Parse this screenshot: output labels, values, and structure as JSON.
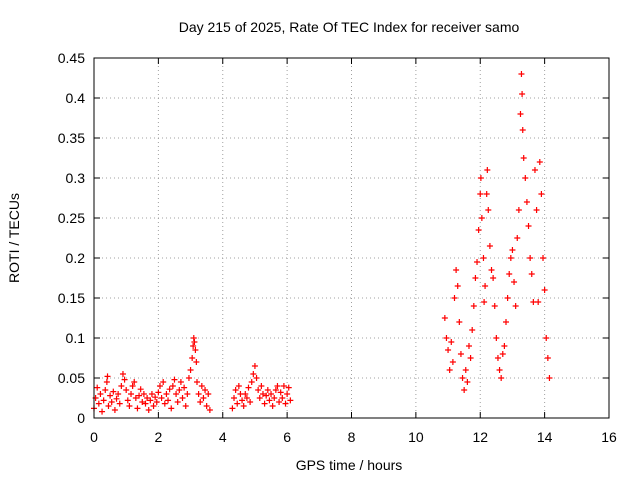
{
  "chart_data": {
    "type": "scatter",
    "title": "Day 215 of 2025, Rate Of TEC Index for receiver samo",
    "xlabel": "GPS time / hours",
    "ylabel": "ROTI / TECUs",
    "xlim": [
      0,
      16
    ],
    "ylim": [
      0,
      0.45
    ],
    "xticks": [
      0,
      2,
      4,
      6,
      8,
      10,
      12,
      14,
      16
    ],
    "xtick_labels": [
      "0",
      "2",
      "4",
      "6",
      "8",
      "10",
      "12",
      "14",
      "16"
    ],
    "yticks": [
      0,
      0.05,
      0.1,
      0.15,
      0.2,
      0.25,
      0.3,
      0.35,
      0.4,
      0.45
    ],
    "ytick_labels": [
      "0",
      "0.05",
      "0.1",
      "0.15",
      "0.2",
      "0.25",
      "0.3",
      "0.35",
      "0.4",
      "0.45"
    ],
    "grid": true,
    "marker": "+",
    "color": "#ff0000",
    "series": [
      {
        "name": "ROTI",
        "points": [
          [
            0.0,
            0.012
          ],
          [
            0.05,
            0.025
          ],
          [
            0.1,
            0.038
          ],
          [
            0.15,
            0.018
          ],
          [
            0.2,
            0.03
          ],
          [
            0.25,
            0.008
          ],
          [
            0.3,
            0.022
          ],
          [
            0.35,
            0.035
          ],
          [
            0.4,
            0.045
          ],
          [
            0.42,
            0.052
          ],
          [
            0.45,
            0.015
          ],
          [
            0.5,
            0.028
          ],
          [
            0.55,
            0.02
          ],
          [
            0.6,
            0.033
          ],
          [
            0.65,
            0.01
          ],
          [
            0.7,
            0.024
          ],
          [
            0.75,
            0.03
          ],
          [
            0.8,
            0.018
          ],
          [
            0.85,
            0.04
          ],
          [
            0.9,
            0.055
          ],
          [
            0.95,
            0.048
          ],
          [
            1.0,
            0.035
          ],
          [
            1.05,
            0.022
          ],
          [
            1.1,
            0.015
          ],
          [
            1.15,
            0.03
          ],
          [
            1.2,
            0.04
          ],
          [
            1.25,
            0.045
          ],
          [
            1.3,
            0.025
          ],
          [
            1.35,
            0.012
          ],
          [
            1.4,
            0.028
          ],
          [
            1.45,
            0.036
          ],
          [
            1.5,
            0.02
          ],
          [
            1.55,
            0.03
          ],
          [
            1.6,
            0.018
          ],
          [
            1.65,
            0.025
          ],
          [
            1.7,
            0.01
          ],
          [
            1.75,
            0.022
          ],
          [
            1.8,
            0.03
          ],
          [
            1.85,
            0.015
          ],
          [
            1.9,
            0.026
          ],
          [
            1.95,
            0.02
          ],
          [
            2.0,
            0.032
          ],
          [
            2.05,
            0.04
          ],
          [
            2.1,
            0.025
          ],
          [
            2.15,
            0.045
          ],
          [
            2.2,
            0.018
          ],
          [
            2.25,
            0.03
          ],
          [
            2.3,
            0.022
          ],
          [
            2.35,
            0.036
          ],
          [
            2.4,
            0.012
          ],
          [
            2.45,
            0.04
          ],
          [
            2.5,
            0.048
          ],
          [
            2.55,
            0.03
          ],
          [
            2.6,
            0.02
          ],
          [
            2.65,
            0.035
          ],
          [
            2.7,
            0.045
          ],
          [
            2.75,
            0.025
          ],
          [
            2.8,
            0.038
          ],
          [
            2.85,
            0.015
          ],
          [
            2.9,
            0.03
          ],
          [
            2.95,
            0.05
          ],
          [
            3.0,
            0.06
          ],
          [
            3.05,
            0.075
          ],
          [
            3.08,
            0.09
          ],
          [
            3.1,
            0.1
          ],
          [
            3.12,
            0.095
          ],
          [
            3.15,
            0.085
          ],
          [
            3.18,
            0.07
          ],
          [
            3.2,
            0.045
          ],
          [
            3.25,
            0.03
          ],
          [
            3.3,
            0.02
          ],
          [
            3.35,
            0.04
          ],
          [
            3.4,
            0.025
          ],
          [
            3.45,
            0.035
          ],
          [
            3.5,
            0.015
          ],
          [
            3.55,
            0.03
          ],
          [
            3.6,
            0.01
          ],
          [
            4.3,
            0.012
          ],
          [
            4.35,
            0.025
          ],
          [
            4.4,
            0.035
          ],
          [
            4.45,
            0.018
          ],
          [
            4.5,
            0.04
          ],
          [
            4.55,
            0.03
          ],
          [
            4.6,
            0.022
          ],
          [
            4.65,
            0.015
          ],
          [
            4.7,
            0.03
          ],
          [
            4.75,
            0.025
          ],
          [
            4.8,
            0.038
          ],
          [
            4.85,
            0.02
          ],
          [
            4.9,
            0.045
          ],
          [
            4.95,
            0.055
          ],
          [
            5.0,
            0.065
          ],
          [
            5.05,
            0.05
          ],
          [
            5.1,
            0.035
          ],
          [
            5.15,
            0.025
          ],
          [
            5.2,
            0.04
          ],
          [
            5.25,
            0.03
          ],
          [
            5.3,
            0.018
          ],
          [
            5.35,
            0.028
          ],
          [
            5.4,
            0.035
          ],
          [
            5.45,
            0.022
          ],
          [
            5.5,
            0.03
          ],
          [
            5.55,
            0.015
          ],
          [
            5.6,
            0.025
          ],
          [
            5.65,
            0.035
          ],
          [
            5.7,
            0.04
          ],
          [
            5.75,
            0.02
          ],
          [
            5.8,
            0.032
          ],
          [
            5.85,
            0.025
          ],
          [
            5.9,
            0.04
          ],
          [
            5.95,
            0.018
          ],
          [
            6.0,
            0.03
          ],
          [
            6.05,
            0.038
          ],
          [
            6.1,
            0.022
          ],
          [
            10.9,
            0.125
          ],
          [
            10.95,
            0.1
          ],
          [
            11.0,
            0.085
          ],
          [
            11.05,
            0.06
          ],
          [
            11.1,
            0.095
          ],
          [
            11.15,
            0.07
          ],
          [
            11.2,
            0.15
          ],
          [
            11.25,
            0.185
          ],
          [
            11.3,
            0.165
          ],
          [
            11.35,
            0.12
          ],
          [
            11.4,
            0.08
          ],
          [
            11.45,
            0.05
          ],
          [
            11.5,
            0.035
          ],
          [
            11.55,
            0.06
          ],
          [
            11.6,
            0.045
          ],
          [
            11.65,
            0.09
          ],
          [
            11.7,
            0.075
          ],
          [
            11.75,
            0.11
          ],
          [
            11.8,
            0.14
          ],
          [
            11.85,
            0.175
          ],
          [
            11.9,
            0.195
          ],
          [
            11.95,
            0.235
          ],
          [
            12.0,
            0.28
          ],
          [
            12.02,
            0.3
          ],
          [
            12.05,
            0.25
          ],
          [
            12.1,
            0.2
          ],
          [
            12.12,
            0.145
          ],
          [
            12.15,
            0.165
          ],
          [
            12.2,
            0.28
          ],
          [
            12.22,
            0.31
          ],
          [
            12.25,
            0.26
          ],
          [
            12.3,
            0.215
          ],
          [
            12.35,
            0.185
          ],
          [
            12.4,
            0.175
          ],
          [
            12.45,
            0.14
          ],
          [
            12.5,
            0.1
          ],
          [
            12.55,
            0.075
          ],
          [
            12.6,
            0.06
          ],
          [
            12.65,
            0.05
          ],
          [
            12.7,
            0.08
          ],
          [
            12.75,
            0.09
          ],
          [
            12.8,
            0.12
          ],
          [
            12.85,
            0.15
          ],
          [
            12.9,
            0.18
          ],
          [
            12.95,
            0.2
          ],
          [
            13.0,
            0.21
          ],
          [
            13.05,
            0.17
          ],
          [
            13.1,
            0.14
          ],
          [
            13.15,
            0.225
          ],
          [
            13.2,
            0.26
          ],
          [
            13.25,
            0.38
          ],
          [
            13.28,
            0.43
          ],
          [
            13.3,
            0.405
          ],
          [
            13.32,
            0.36
          ],
          [
            13.35,
            0.325
          ],
          [
            13.4,
            0.3
          ],
          [
            13.45,
            0.27
          ],
          [
            13.5,
            0.24
          ],
          [
            13.55,
            0.2
          ],
          [
            13.6,
            0.18
          ],
          [
            13.65,
            0.145
          ],
          [
            13.7,
            0.31
          ],
          [
            13.75,
            0.26
          ],
          [
            13.8,
            0.145
          ],
          [
            13.85,
            0.32
          ],
          [
            13.9,
            0.28
          ],
          [
            13.95,
            0.2
          ],
          [
            14.0,
            0.16
          ],
          [
            14.05,
            0.1
          ],
          [
            14.1,
            0.075
          ],
          [
            14.15,
            0.05
          ]
        ]
      }
    ]
  }
}
